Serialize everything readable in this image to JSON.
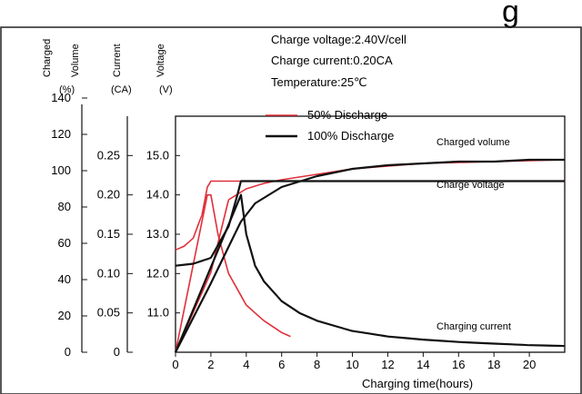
{
  "header_fragment": "g",
  "conditions": [
    "Charge voltage:2.40V/cell",
    "Charge current:0.20CA",
    "Temperature:25℃"
  ],
  "axis_headers": {
    "volume": {
      "label": [
        "Charged",
        "Volume"
      ],
      "unit": "(%)"
    },
    "current": {
      "label": "Current",
      "unit": "(CA)"
    },
    "voltage": {
      "label": "Voltage",
      "unit": "(V)"
    }
  },
  "chart_data": {
    "type": "line",
    "xlabel": "Charging time(hours)",
    "xlim": [
      0,
      22
    ],
    "x_ticks": [
      "0",
      "2",
      "4",
      "6",
      "8",
      "10",
      "12",
      "14",
      "16",
      "18",
      "20"
    ],
    "axes": {
      "volume": {
        "ylim": [
          0,
          140
        ],
        "ticks": [
          "0",
          "20",
          "40",
          "60",
          "80",
          "100",
          "120",
          "140"
        ]
      },
      "current": {
        "ylim": [
          0,
          0.3
        ],
        "ticks": [
          "0",
          "0.05",
          "0.10",
          "0.15",
          "0.20",
          "0.25"
        ]
      },
      "voltage": {
        "ylim": [
          10,
          16
        ],
        "ticks": [
          "11.0",
          "12.0",
          "13.0",
          "14.0",
          "15.0"
        ]
      }
    },
    "legend": [
      {
        "name": "50% Discharge",
        "color": "#e0303a"
      },
      {
        "name": "100% Discharge",
        "color": "#111111"
      }
    ],
    "curve_labels": [
      "Charged volume",
      "Charge voltage",
      "Charging current"
    ],
    "series": [
      {
        "group": "50% Discharge",
        "quantity": "Charged volume",
        "axis": "volume",
        "x": [
          0,
          2,
          3,
          4,
          5,
          6,
          8,
          10,
          14,
          22
        ],
        "y": [
          0,
          44,
          84,
          90,
          93,
          95,
          98,
          101,
          104,
          106
        ]
      },
      {
        "group": "50% Discharge",
        "quantity": "Charge voltage",
        "axis": "voltage",
        "x": [
          0,
          0.5,
          1,
          1.5,
          1.8,
          2,
          22
        ],
        "y": [
          12.6,
          12.7,
          12.9,
          13.5,
          14.2,
          14.35,
          14.35
        ]
      },
      {
        "group": "50% Discharge",
        "quantity": "Charging current",
        "axis": "current",
        "x": [
          0,
          1.8,
          2,
          2.4,
          3,
          4,
          5,
          6,
          6.5
        ],
        "y": [
          0,
          0.2,
          0.2,
          0.15,
          0.1,
          0.06,
          0.04,
          0.025,
          0.02
        ]
      },
      {
        "group": "100% Discharge",
        "quantity": "Charged volume",
        "axis": "volume",
        "x": [
          0,
          2,
          3.7,
          4.5,
          6,
          8,
          10,
          12,
          14,
          16,
          18,
          20,
          22
        ],
        "y": [
          0,
          38,
          72,
          82,
          91,
          97,
          101,
          103,
          104,
          105,
          105,
          106,
          106
        ]
      },
      {
        "group": "100% Discharge",
        "quantity": "Charge voltage",
        "axis": "voltage",
        "x": [
          0,
          1,
          2,
          3,
          3.5,
          3.7,
          22
        ],
        "y": [
          12.2,
          12.25,
          12.4,
          13.2,
          14.0,
          14.35,
          14.35
        ]
      },
      {
        "group": "100% Discharge",
        "quantity": "Charging current",
        "axis": "current",
        "x": [
          0,
          3.7,
          4,
          4.5,
          5,
          6,
          7,
          8,
          10,
          12,
          14,
          16,
          18,
          20,
          22
        ],
        "y": [
          0,
          0.2,
          0.15,
          0.11,
          0.09,
          0.065,
          0.05,
          0.04,
          0.027,
          0.02,
          0.016,
          0.013,
          0.011,
          0.009,
          0.008
        ]
      }
    ]
  }
}
